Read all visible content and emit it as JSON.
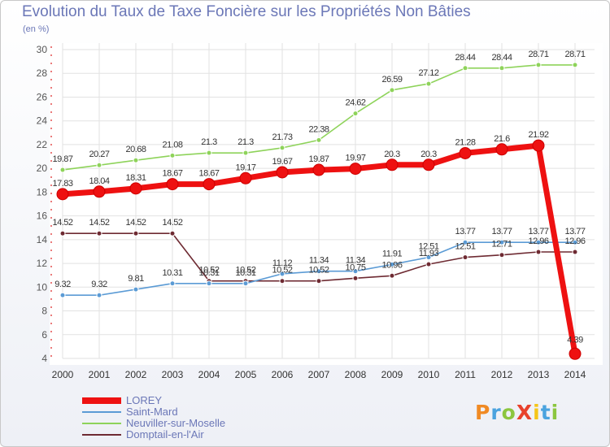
{
  "header": {
    "title": "Evolution du Taux de Taxe Foncière sur les Propriétés Non Bâties",
    "subtitle": "(en %)"
  },
  "brand": {
    "text": "ProXiti",
    "colors": [
      "#f08a24",
      "#4aa3df",
      "#8cc63f",
      "#e8412c",
      "#f5c518",
      "#4aa3df",
      "#8cc63f"
    ]
  },
  "chart_data": {
    "type": "line",
    "x": [
      2000,
      2001,
      2002,
      2003,
      2004,
      2005,
      2006,
      2007,
      2008,
      2009,
      2010,
      2011,
      2012,
      2013,
      2014
    ],
    "ylim": [
      4,
      30
    ],
    "yticks": [
      4,
      6,
      8,
      10,
      12,
      14,
      16,
      18,
      20,
      22,
      24,
      26,
      28,
      30
    ],
    "grid": true,
    "legend_position": "bottom-left",
    "series": [
      {
        "name": "LOREY",
        "color": "#ee1111",
        "emphasis": true,
        "values": [
          17.83,
          18.04,
          18.31,
          18.67,
          18.67,
          19.17,
          19.67,
          19.87,
          19.97,
          20.3,
          20.3,
          21.28,
          21.6,
          21.92,
          4.39
        ],
        "labels": [
          "17.83",
          "18.04",
          "18.31",
          "18.67",
          "18.67",
          "19.17",
          "19.67",
          "19.87",
          "19.97",
          "20.3",
          "20.3",
          "21.28",
          "21.6",
          "21.92",
          "4.39"
        ]
      },
      {
        "name": "Saint-Mard",
        "color": "#5b9bd5",
        "values": [
          9.32,
          9.32,
          9.81,
          10.31,
          10.31,
          10.31,
          11.12,
          11.34,
          11.34,
          11.91,
          12.51,
          13.77,
          13.77,
          13.77,
          13.77
        ],
        "labels": [
          "9.32",
          "9.32",
          "9.81",
          "10.31",
          "10.31",
          "10.31",
          "11.12",
          "11.34",
          "11.34",
          "11.91",
          "12.51",
          "13.77",
          "13.77",
          "13.77",
          "13.77"
        ]
      },
      {
        "name": "Neuviller-sur-Moselle",
        "color": "#8ed35a",
        "values": [
          19.87,
          20.27,
          20.68,
          21.08,
          21.3,
          21.3,
          21.73,
          22.38,
          24.62,
          26.59,
          27.12,
          28.44,
          28.44,
          28.71,
          28.71
        ],
        "labels": [
          "19.87",
          "20.27",
          "20.68",
          "21.08",
          "21.3",
          "21.3",
          "21.73",
          "22.38",
          "24.62",
          "26.59",
          "27.12",
          "28.44",
          "28.44",
          "28.71",
          "28.71"
        ]
      },
      {
        "name": "Domptail-en-l'Air",
        "color": "#6e2a32",
        "values": [
          14.52,
          14.52,
          14.52,
          14.52,
          10.52,
          10.52,
          10.52,
          10.52,
          10.75,
          10.96,
          11.93,
          12.51,
          12.71,
          12.96,
          12.96
        ],
        "labels": [
          "14.52",
          "14.52",
          "14.52",
          "14.52",
          "10.52",
          "10.52",
          "10.52",
          "10.52",
          "10.75",
          "10.96",
          "11.93",
          "12.51",
          "12.71",
          "12.96",
          "12.96"
        ]
      }
    ]
  }
}
